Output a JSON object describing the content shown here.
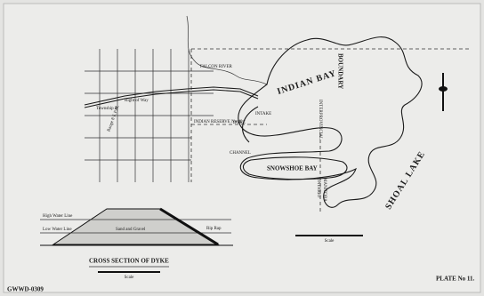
{
  "map": {
    "labels": {
      "indian_bay": "INDIAN BAY",
      "shoal_lake": "SHOAL LAKE",
      "snowshoe_bay": "SNOWSHOE BAY",
      "boundary": "BOUNDARY",
      "interprovincial": "INTERPROVINCIAL",
      "manitoba": "MANITOBA",
      "ontario": "ONTARIO",
      "intake": "INTAKE",
      "dyke": "DYKE",
      "channel": "CHANNEL",
      "indian_reserve": "INDIAN RESERVE No 40",
      "falcon_river": "FALCON RIVER",
      "township": "Township 8",
      "range": "Range 8 E.P.M.",
      "right_of_way": "Right of Way",
      "map_scale": "Scale"
    },
    "cross_section": {
      "title": "CROSS SECTION OF DYKE",
      "high_water": "High Water Line",
      "low_water": "Low Water Line",
      "fill": "Sand and Gravel",
      "rip_rap": "Rip Rap",
      "scale": "Scale"
    },
    "footer": {
      "plate": "PLATE No 11.",
      "code": "GWWD-0309"
    }
  }
}
